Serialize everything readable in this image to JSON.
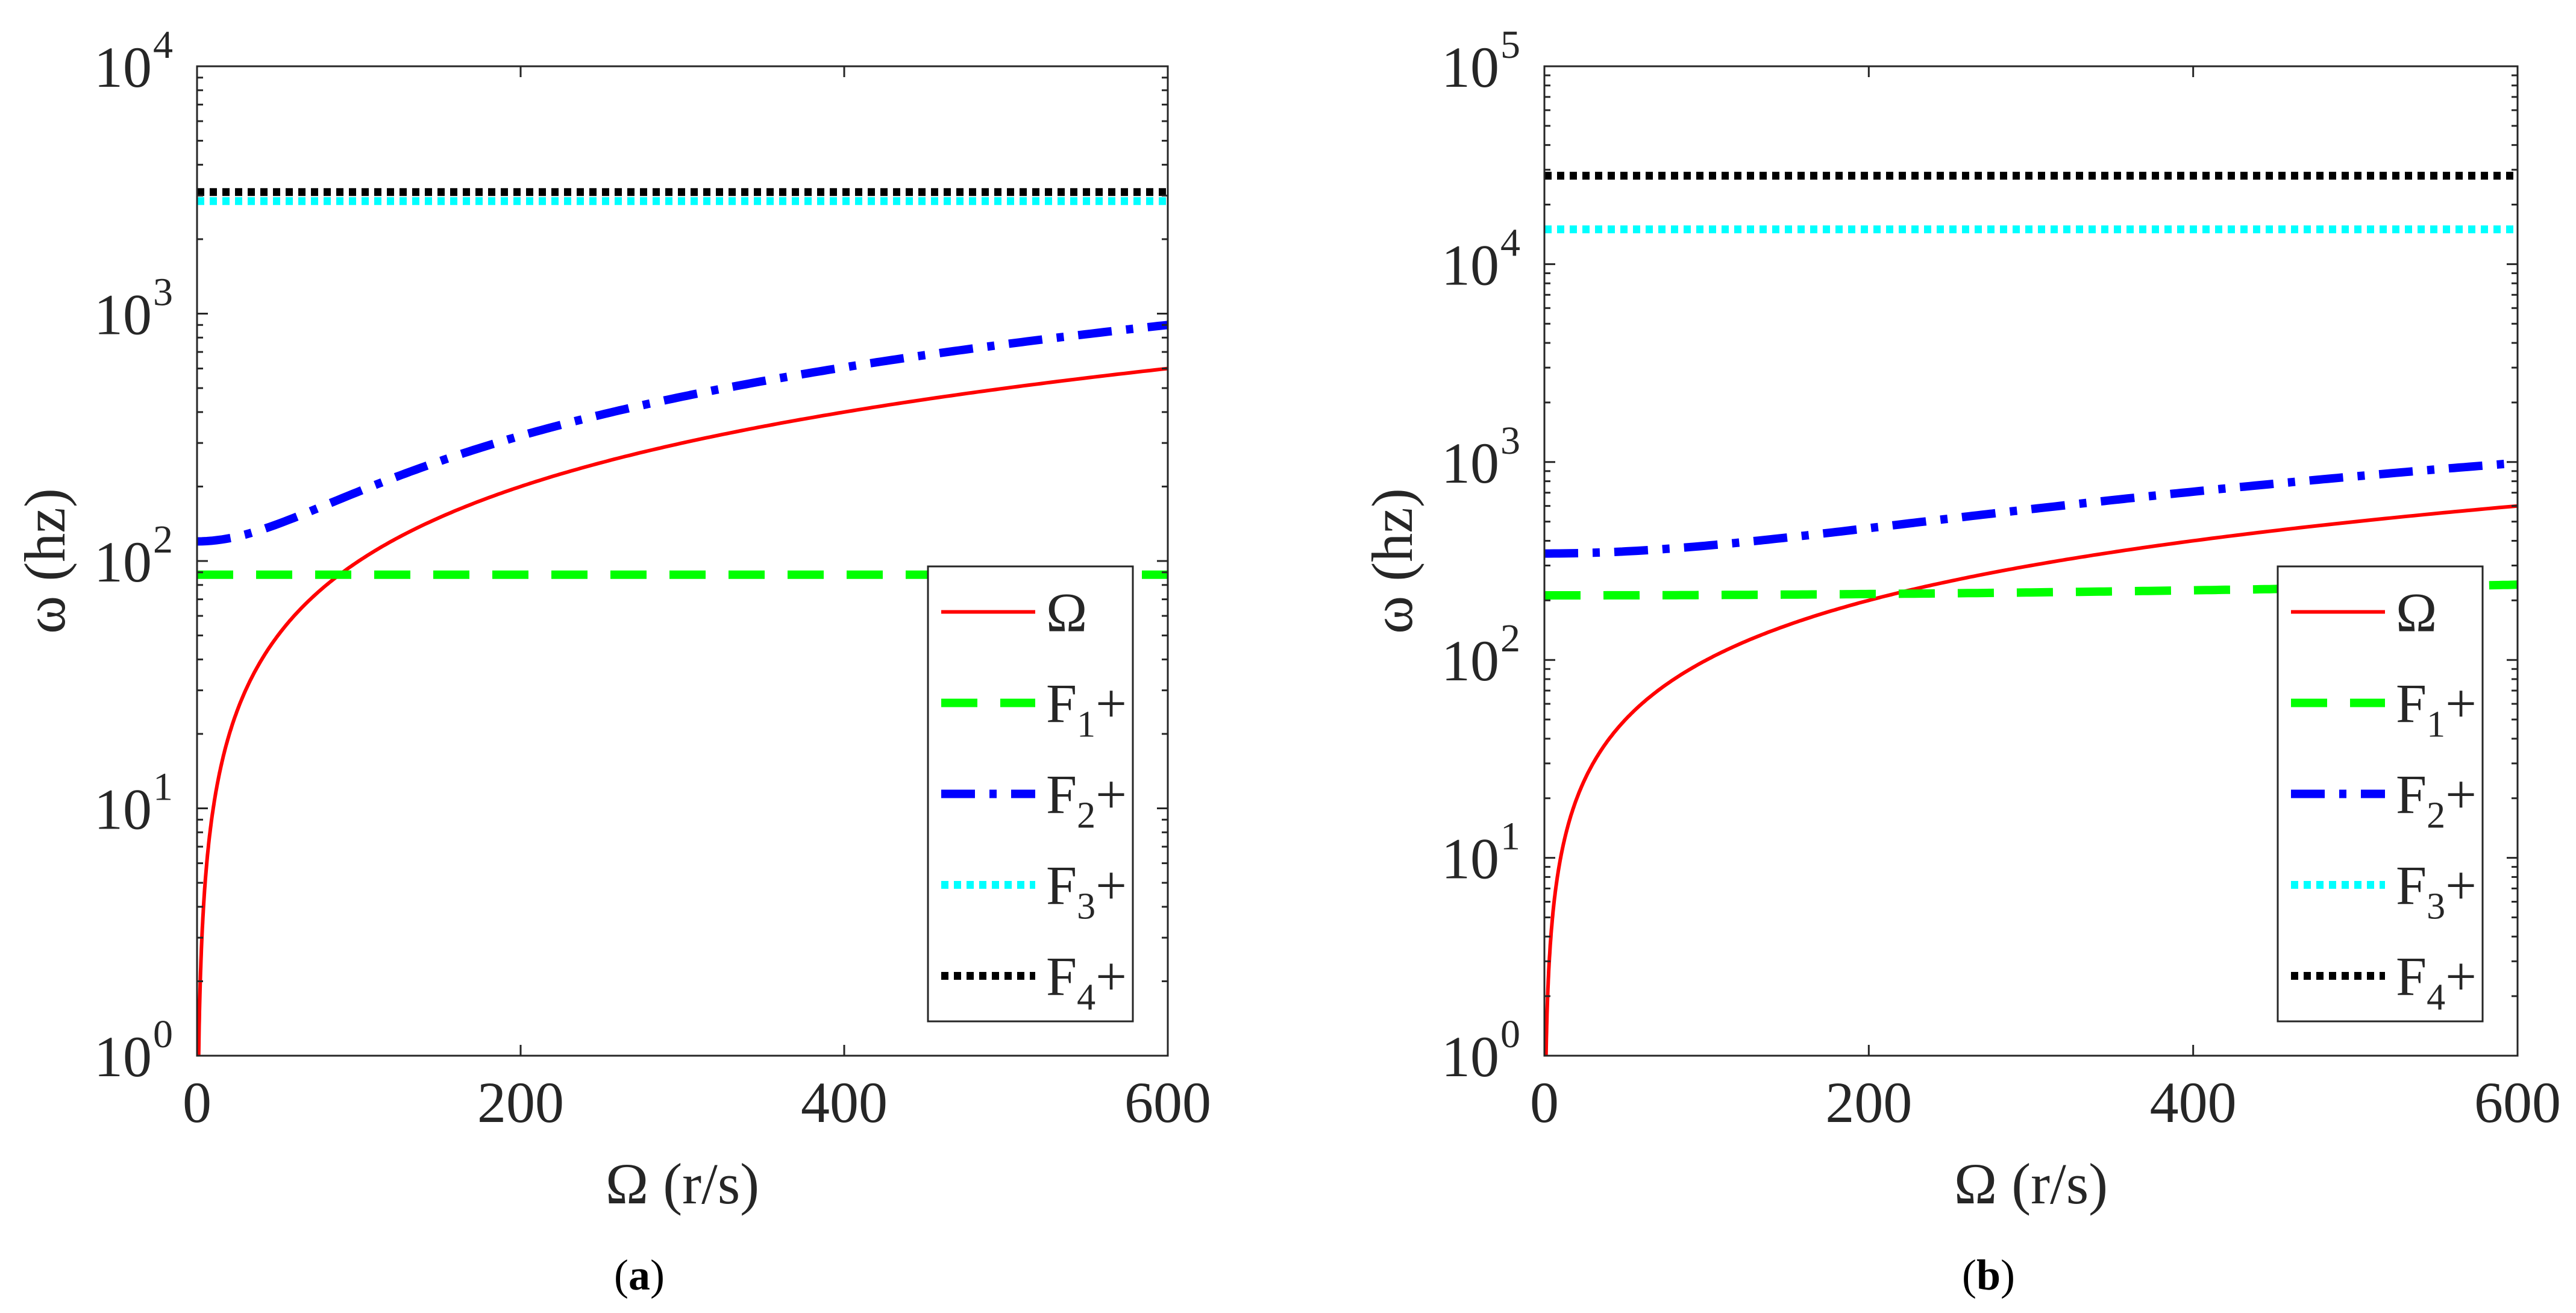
{
  "chart_data": [
    {
      "type": "line",
      "panel_label": "a",
      "caption": {
        "open": "(",
        "letter": "a",
        "close": ")"
      },
      "xlabel": "Ω (r/s)",
      "ylabel": "ω (hz)",
      "xlim": [
        0,
        600
      ],
      "ylim": [
        1,
        10000
      ],
      "yscale": "log",
      "xticks": [
        "0",
        "200",
        "400",
        "600"
      ],
      "xtick_values": [
        0,
        200,
        400,
        600
      ],
      "yticks": [
        {
          "base": "10",
          "exp": "0",
          "value": 1
        },
        {
          "base": "10",
          "exp": "1",
          "value": 10
        },
        {
          "base": "10",
          "exp": "2",
          "value": 100
        },
        {
          "base": "10",
          "exp": "3",
          "value": 1000
        },
        {
          "base": "10",
          "exp": "4",
          "value": 10000
        }
      ],
      "legend_position": "bottom-right",
      "series": [
        {
          "name": "Ω",
          "label_main": "Ω",
          "label_sub": "",
          "label_suffix": "",
          "color": "#ff0000",
          "style": "solid",
          "kind": "omega",
          "x": [
            0,
            600
          ],
          "y_start": 1,
          "y_end": 600
        },
        {
          "name": "F1+",
          "label_main": "F",
          "label_sub": "1",
          "label_suffix": "+",
          "color": "#00ff00",
          "style": "dashed",
          "kind": "const",
          "x": [
            0,
            600
          ],
          "y": 88
        },
        {
          "name": "F2+",
          "label_main": "F",
          "label_sub": "2",
          "label_suffix": "+",
          "color": "#0000ff",
          "style": "dashdot",
          "kind": "hyper",
          "x": [
            0,
            600
          ],
          "y_start": 120,
          "y_end": 900
        },
        {
          "name": "F3+",
          "label_main": "F",
          "label_sub": "3",
          "label_suffix": "+",
          "color": "#00ffff",
          "style": "dotted",
          "kind": "const",
          "x": [
            0,
            600
          ],
          "y": 2850
        },
        {
          "name": "F4+",
          "label_main": "F",
          "label_sub": "4",
          "label_suffix": "+",
          "color": "#000000",
          "style": "dotted",
          "kind": "const",
          "x": [
            0,
            600
          ],
          "y": 3100
        }
      ]
    },
    {
      "type": "line",
      "panel_label": "b",
      "caption": {
        "open": "(",
        "letter": "b",
        "close": ")"
      },
      "xlabel": "Ω (r/s)",
      "ylabel": "ω (hz)",
      "xlim": [
        0,
        600
      ],
      "ylim": [
        1,
        100000
      ],
      "yscale": "log",
      "xticks": [
        "0",
        "200",
        "400",
        "600"
      ],
      "xtick_values": [
        0,
        200,
        400,
        600
      ],
      "yticks": [
        {
          "base": "10",
          "exp": "0",
          "value": 1
        },
        {
          "base": "10",
          "exp": "1",
          "value": 10
        },
        {
          "base": "10",
          "exp": "2",
          "value": 100
        },
        {
          "base": "10",
          "exp": "3",
          "value": 1000
        },
        {
          "base": "10",
          "exp": "4",
          "value": 10000
        },
        {
          "base": "10",
          "exp": "5",
          "value": 100000
        }
      ],
      "legend_position": "bottom-right",
      "series": [
        {
          "name": "Ω",
          "label_main": "Ω",
          "label_sub": "",
          "label_suffix": "",
          "color": "#ff0000",
          "style": "solid",
          "kind": "omega",
          "x": [
            0,
            600
          ],
          "y_start": 1,
          "y_end": 600
        },
        {
          "name": "F1+",
          "label_main": "F",
          "label_sub": "1",
          "label_suffix": "+",
          "color": "#00ff00",
          "style": "dashed",
          "kind": "hyper",
          "x": [
            0,
            600
          ],
          "y_start": 212,
          "y_end": 240
        },
        {
          "name": "F2+",
          "label_main": "F",
          "label_sub": "2",
          "label_suffix": "+",
          "color": "#0000ff",
          "style": "dashdot",
          "kind": "hyper",
          "x": [
            0,
            600
          ],
          "y_start": 345,
          "y_end": 990
        },
        {
          "name": "F3+",
          "label_main": "F",
          "label_sub": "3",
          "label_suffix": "+",
          "color": "#00ffff",
          "style": "dotted",
          "kind": "const",
          "x": [
            0,
            600
          ],
          "y": 15000
        },
        {
          "name": "F4+",
          "label_main": "F",
          "label_sub": "4",
          "label_suffix": "+",
          "color": "#000000",
          "style": "dotted",
          "kind": "const",
          "x": [
            0,
            600
          ],
          "y": 28000
        }
      ]
    }
  ]
}
